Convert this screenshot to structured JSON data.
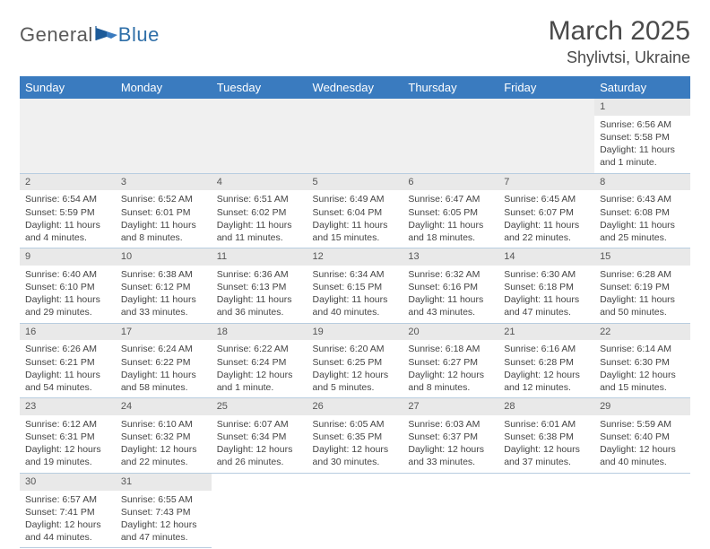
{
  "colors": {
    "header_bg": "#3a7bbf",
    "header_text": "#ffffff",
    "daynum_bg": "#e9e9e9",
    "border": "#b8cde0",
    "text": "#444444",
    "logo_gray": "#5a5a5a",
    "logo_blue": "#2f6fa8"
  },
  "logo": {
    "part1": "General",
    "part2": "Blue"
  },
  "title": {
    "month": "March 2025",
    "location": "Shylivtsi, Ukraine"
  },
  "weekdays": [
    "Sunday",
    "Monday",
    "Tuesday",
    "Wednesday",
    "Thursday",
    "Friday",
    "Saturday"
  ],
  "grid": {
    "first_weekday_index": 6,
    "days_in_month": 31
  },
  "days": {
    "1": {
      "sunrise": "Sunrise: 6:56 AM",
      "sunset": "Sunset: 5:58 PM",
      "daylight": "Daylight: 11 hours and 1 minute."
    },
    "2": {
      "sunrise": "Sunrise: 6:54 AM",
      "sunset": "Sunset: 5:59 PM",
      "daylight": "Daylight: 11 hours and 4 minutes."
    },
    "3": {
      "sunrise": "Sunrise: 6:52 AM",
      "sunset": "Sunset: 6:01 PM",
      "daylight": "Daylight: 11 hours and 8 minutes."
    },
    "4": {
      "sunrise": "Sunrise: 6:51 AM",
      "sunset": "Sunset: 6:02 PM",
      "daylight": "Daylight: 11 hours and 11 minutes."
    },
    "5": {
      "sunrise": "Sunrise: 6:49 AM",
      "sunset": "Sunset: 6:04 PM",
      "daylight": "Daylight: 11 hours and 15 minutes."
    },
    "6": {
      "sunrise": "Sunrise: 6:47 AM",
      "sunset": "Sunset: 6:05 PM",
      "daylight": "Daylight: 11 hours and 18 minutes."
    },
    "7": {
      "sunrise": "Sunrise: 6:45 AM",
      "sunset": "Sunset: 6:07 PM",
      "daylight": "Daylight: 11 hours and 22 minutes."
    },
    "8": {
      "sunrise": "Sunrise: 6:43 AM",
      "sunset": "Sunset: 6:08 PM",
      "daylight": "Daylight: 11 hours and 25 minutes."
    },
    "9": {
      "sunrise": "Sunrise: 6:40 AM",
      "sunset": "Sunset: 6:10 PM",
      "daylight": "Daylight: 11 hours and 29 minutes."
    },
    "10": {
      "sunrise": "Sunrise: 6:38 AM",
      "sunset": "Sunset: 6:12 PM",
      "daylight": "Daylight: 11 hours and 33 minutes."
    },
    "11": {
      "sunrise": "Sunrise: 6:36 AM",
      "sunset": "Sunset: 6:13 PM",
      "daylight": "Daylight: 11 hours and 36 minutes."
    },
    "12": {
      "sunrise": "Sunrise: 6:34 AM",
      "sunset": "Sunset: 6:15 PM",
      "daylight": "Daylight: 11 hours and 40 minutes."
    },
    "13": {
      "sunrise": "Sunrise: 6:32 AM",
      "sunset": "Sunset: 6:16 PM",
      "daylight": "Daylight: 11 hours and 43 minutes."
    },
    "14": {
      "sunrise": "Sunrise: 6:30 AM",
      "sunset": "Sunset: 6:18 PM",
      "daylight": "Daylight: 11 hours and 47 minutes."
    },
    "15": {
      "sunrise": "Sunrise: 6:28 AM",
      "sunset": "Sunset: 6:19 PM",
      "daylight": "Daylight: 11 hours and 50 minutes."
    },
    "16": {
      "sunrise": "Sunrise: 6:26 AM",
      "sunset": "Sunset: 6:21 PM",
      "daylight": "Daylight: 11 hours and 54 minutes."
    },
    "17": {
      "sunrise": "Sunrise: 6:24 AM",
      "sunset": "Sunset: 6:22 PM",
      "daylight": "Daylight: 11 hours and 58 minutes."
    },
    "18": {
      "sunrise": "Sunrise: 6:22 AM",
      "sunset": "Sunset: 6:24 PM",
      "daylight": "Daylight: 12 hours and 1 minute."
    },
    "19": {
      "sunrise": "Sunrise: 6:20 AM",
      "sunset": "Sunset: 6:25 PM",
      "daylight": "Daylight: 12 hours and 5 minutes."
    },
    "20": {
      "sunrise": "Sunrise: 6:18 AM",
      "sunset": "Sunset: 6:27 PM",
      "daylight": "Daylight: 12 hours and 8 minutes."
    },
    "21": {
      "sunrise": "Sunrise: 6:16 AM",
      "sunset": "Sunset: 6:28 PM",
      "daylight": "Daylight: 12 hours and 12 minutes."
    },
    "22": {
      "sunrise": "Sunrise: 6:14 AM",
      "sunset": "Sunset: 6:30 PM",
      "daylight": "Daylight: 12 hours and 15 minutes."
    },
    "23": {
      "sunrise": "Sunrise: 6:12 AM",
      "sunset": "Sunset: 6:31 PM",
      "daylight": "Daylight: 12 hours and 19 minutes."
    },
    "24": {
      "sunrise": "Sunrise: 6:10 AM",
      "sunset": "Sunset: 6:32 PM",
      "daylight": "Daylight: 12 hours and 22 minutes."
    },
    "25": {
      "sunrise": "Sunrise: 6:07 AM",
      "sunset": "Sunset: 6:34 PM",
      "daylight": "Daylight: 12 hours and 26 minutes."
    },
    "26": {
      "sunrise": "Sunrise: 6:05 AM",
      "sunset": "Sunset: 6:35 PM",
      "daylight": "Daylight: 12 hours and 30 minutes."
    },
    "27": {
      "sunrise": "Sunrise: 6:03 AM",
      "sunset": "Sunset: 6:37 PM",
      "daylight": "Daylight: 12 hours and 33 minutes."
    },
    "28": {
      "sunrise": "Sunrise: 6:01 AM",
      "sunset": "Sunset: 6:38 PM",
      "daylight": "Daylight: 12 hours and 37 minutes."
    },
    "29": {
      "sunrise": "Sunrise: 5:59 AM",
      "sunset": "Sunset: 6:40 PM",
      "daylight": "Daylight: 12 hours and 40 minutes."
    },
    "30": {
      "sunrise": "Sunrise: 6:57 AM",
      "sunset": "Sunset: 7:41 PM",
      "daylight": "Daylight: 12 hours and 44 minutes."
    },
    "31": {
      "sunrise": "Sunrise: 6:55 AM",
      "sunset": "Sunset: 7:43 PM",
      "daylight": "Daylight: 12 hours and 47 minutes."
    }
  }
}
